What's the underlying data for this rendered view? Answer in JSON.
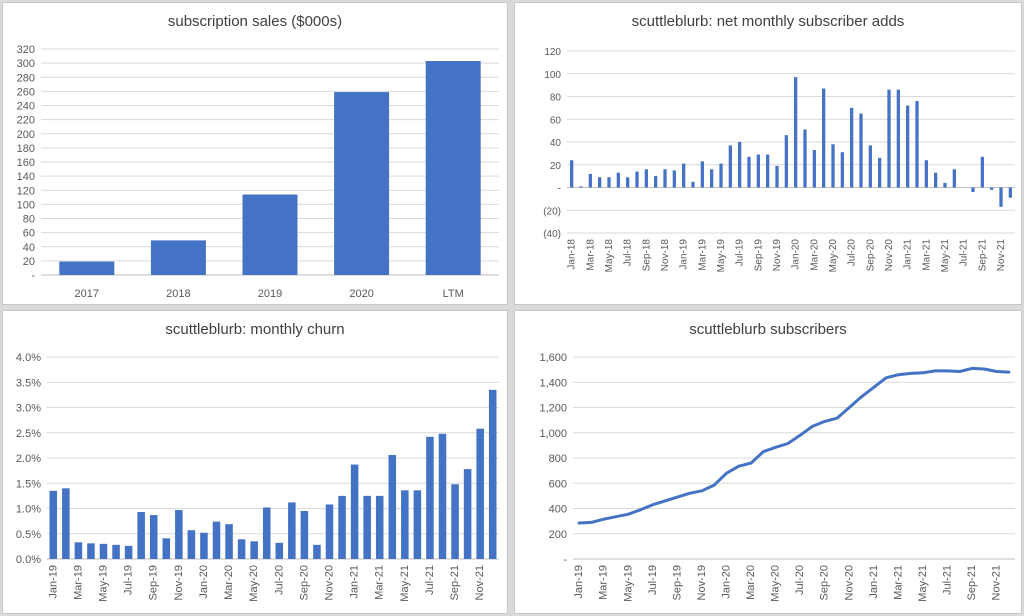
{
  "charts": [
    {
      "type": "bar",
      "title": "subscription sales ($000s)",
      "categories": [
        "2017",
        "2018",
        "2019",
        "2020",
        "LTM"
      ],
      "values": [
        19,
        49,
        114,
        259,
        303
      ],
      "yticks": [
        0,
        20,
        40,
        60,
        80,
        100,
        120,
        140,
        160,
        180,
        200,
        220,
        240,
        260,
        280,
        300,
        320
      ],
      "ytick_labels": [
        "-",
        "20",
        "40",
        "60",
        "80",
        "100",
        "120",
        "140",
        "160",
        "180",
        "200",
        "220",
        "240",
        "260",
        "280",
        "300",
        "320"
      ],
      "ylim": [
        0,
        320
      ],
      "grid": true,
      "color": "#4472c4"
    },
    {
      "type": "bar",
      "title": "scuttleblurb: net monthly subscriber adds",
      "categories": [
        "Jan-18",
        "Feb-18",
        "Mar-18",
        "Apr-18",
        "May-18",
        "Jun-18",
        "Jul-18",
        "Aug-18",
        "Sep-18",
        "Oct-18",
        "Nov-18",
        "Dec-18",
        "Jan-19",
        "Feb-19",
        "Mar-19",
        "Apr-19",
        "May-19",
        "Jun-19",
        "Jul-19",
        "Aug-19",
        "Sep-19",
        "Oct-19",
        "Nov-19",
        "Dec-19",
        "Jan-20",
        "Feb-20",
        "Mar-20",
        "Apr-20",
        "May-20",
        "Jun-20",
        "Jul-20",
        "Aug-20",
        "Sep-20",
        "Oct-20",
        "Nov-20",
        "Dec-20",
        "Jan-21",
        "Feb-21",
        "Mar-21",
        "Apr-21",
        "May-21",
        "Jun-21",
        "Jul-21",
        "Aug-21",
        "Sep-21",
        "Oct-21",
        "Nov-21",
        "Dec-21"
      ],
      "xtick_labels": [
        "Jan-18",
        "Mar-18",
        "May-18",
        "Jul-18",
        "Sep-18",
        "Nov-18",
        "Jan-19",
        "Mar-19",
        "May-19",
        "Jul-19",
        "Sep-19",
        "Nov-19",
        "Jan-20",
        "Mar-20",
        "May-20",
        "Jul-20",
        "Sep-20",
        "Nov-20",
        "Jan-21",
        "Mar-21",
        "May-21",
        "Jul-21",
        "Sep-21",
        "Nov-21"
      ],
      "values": [
        24,
        1,
        12,
        9,
        9,
        13,
        9,
        14,
        16,
        10,
        16,
        15,
        21,
        5,
        23,
        16,
        21,
        37,
        40,
        27,
        29,
        29,
        19,
        46,
        97,
        51,
        33,
        87,
        38,
        31,
        70,
        65,
        37,
        26,
        86,
        86,
        72,
        76,
        24,
        13,
        4,
        16,
        0,
        -4,
        27,
        -2,
        -17,
        -9
      ],
      "yticks": [
        -40,
        -20,
        0,
        20,
        40,
        60,
        80,
        100,
        120
      ],
      "ytick_labels": [
        "(40)",
        "(20)",
        "-",
        "20",
        "40",
        "60",
        "80",
        "100",
        "120"
      ],
      "ylim": [
        -40,
        120
      ],
      "grid": true,
      "color": "#4472c4"
    },
    {
      "type": "bar",
      "title": "scuttleblurb: monthly churn",
      "categories": [
        "Jan-19",
        "Feb-19",
        "Mar-19",
        "Apr-19",
        "May-19",
        "Jun-19",
        "Jul-19",
        "Aug-19",
        "Sep-19",
        "Oct-19",
        "Nov-19",
        "Dec-19",
        "Jan-20",
        "Feb-20",
        "Mar-20",
        "Apr-20",
        "May-20",
        "Jun-20",
        "Jul-20",
        "Aug-20",
        "Sep-20",
        "Oct-20",
        "Nov-20",
        "Dec-20",
        "Jan-21",
        "Feb-21",
        "Mar-21",
        "Apr-21",
        "May-21",
        "Jun-21",
        "Jul-21",
        "Aug-21",
        "Sep-21",
        "Oct-21",
        "Nov-21",
        "Dec-21"
      ],
      "xtick_labels": [
        "Jan-19",
        "Mar-19",
        "May-19",
        "Jul-19",
        "Sep-19",
        "Nov-19",
        "Jan-20",
        "Mar-20",
        "May-20",
        "Jul-20",
        "Sep-20",
        "Nov-20",
        "Jan-21",
        "Mar-21",
        "May-21",
        "Jul-21",
        "Sep-21",
        "Nov-21"
      ],
      "values": [
        1.35,
        1.4,
        0.33,
        0.31,
        0.3,
        0.28,
        0.26,
        0.93,
        0.87,
        0.41,
        0.97,
        0.57,
        0.52,
        0.74,
        0.69,
        0.39,
        0.35,
        1.02,
        0.32,
        1.12,
        0.95,
        0.28,
        1.08,
        1.25,
        1.87,
        1.25,
        1.25,
        2.06,
        1.36,
        1.36,
        2.42,
        2.48,
        1.48,
        1.78,
        2.58,
        3.35
      ],
      "yticks": [
        0,
        0.5,
        1,
        1.5,
        2,
        2.5,
        3,
        3.5,
        4
      ],
      "ytick_labels": [
        "0.0%",
        "0.5%",
        "1.0%",
        "1.5%",
        "2.0%",
        "2.5%",
        "3.0%",
        "3.5%",
        "4.0%"
      ],
      "ylim": [
        0,
        4
      ],
      "grid": true,
      "color": "#4472c4"
    },
    {
      "type": "line",
      "title": "scuttleblurb subscribers",
      "categories": [
        "Jan-19",
        "Feb-19",
        "Mar-19",
        "Apr-19",
        "May-19",
        "Jun-19",
        "Jul-19",
        "Aug-19",
        "Sep-19",
        "Oct-19",
        "Nov-19",
        "Dec-19",
        "Jan-20",
        "Feb-20",
        "Mar-20",
        "Apr-20",
        "May-20",
        "Jun-20",
        "Jul-20",
        "Aug-20",
        "Sep-20",
        "Oct-20",
        "Nov-20",
        "Dec-20",
        "Jan-21",
        "Feb-21",
        "Mar-21",
        "Apr-21",
        "May-21",
        "Jun-21",
        "Jul-21",
        "Aug-21",
        "Sep-21",
        "Oct-21",
        "Nov-21",
        "Dec-21"
      ],
      "xtick_labels": [
        "Jan-19",
        "Mar-19",
        "May-19",
        "Jul-19",
        "Sep-19",
        "Nov-19",
        "Jan-20",
        "Mar-20",
        "May-20",
        "Jul-20",
        "Sep-20",
        "Nov-20",
        "Jan-21",
        "Mar-21",
        "May-21",
        "Jul-21",
        "Sep-21",
        "Nov-21"
      ],
      "values": [
        285,
        290,
        315,
        335,
        355,
        390,
        430,
        460,
        490,
        520,
        540,
        585,
        680,
        735,
        760,
        850,
        885,
        915,
        980,
        1050,
        1090,
        1115,
        1200,
        1285,
        1360,
        1435,
        1460,
        1470,
        1475,
        1490,
        1490,
        1485,
        1510,
        1505,
        1485,
        1480
      ],
      "yticks": [
        0,
        200,
        400,
        600,
        800,
        1000,
        1200,
        1400,
        1600
      ],
      "ytick_labels": [
        "-",
        "200",
        "400",
        "600",
        "800",
        "1,000",
        "1,200",
        "1,400",
        "1,600"
      ],
      "ylim": [
        0,
        1600
      ],
      "grid": true,
      "color": "#4472c4"
    }
  ]
}
